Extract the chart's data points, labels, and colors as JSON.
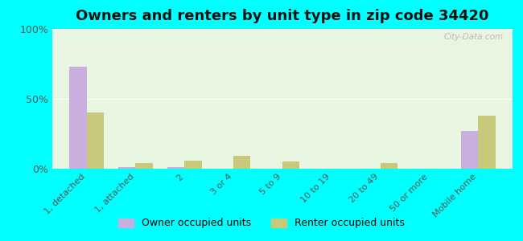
{
  "title": "Owners and renters by unit type in zip code 34420",
  "categories": [
    "1, detached",
    "1, attached",
    "2",
    "3 or 4",
    "5 to 9",
    "10 to 19",
    "20 to 49",
    "50 or more",
    "Mobile home"
  ],
  "owner_values": [
    73,
    1,
    1,
    0,
    0,
    0,
    0,
    0,
    27
  ],
  "renter_values": [
    40,
    4,
    6,
    9,
    5,
    0,
    4,
    0,
    38
  ],
  "owner_color": "#c9aee0",
  "renter_color": "#c8c87a",
  "background_plot": "#e8f5e0",
  "background_fig": "#00ffff",
  "ylim": [
    0,
    100
  ],
  "yticks": [
    0,
    50,
    100
  ],
  "ytick_labels": [
    "0%",
    "50%",
    "100%"
  ],
  "legend_owner": "Owner occupied units",
  "legend_renter": "Renter occupied units",
  "bar_width": 0.35,
  "title_fontsize": 13
}
